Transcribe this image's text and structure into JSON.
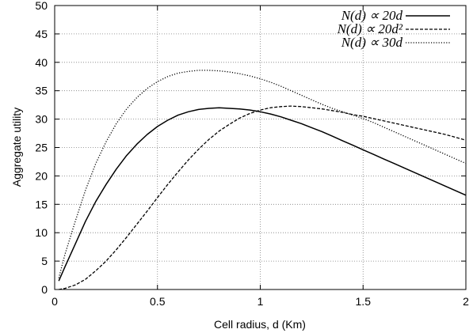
{
  "chart_data": {
    "type": "line",
    "xlabel": "Cell radius, d (Km)",
    "ylabel": "Aggregate utility",
    "xlim": [
      0,
      2
    ],
    "ylim": [
      0,
      50
    ],
    "xticks": [
      0,
      0.5,
      1,
      1.5,
      2
    ],
    "yticks": [
      0,
      5,
      10,
      15,
      20,
      25,
      30,
      35,
      40,
      45,
      50
    ],
    "grid": true,
    "legend_position": "top-right",
    "x": [
      0.02,
      0.05,
      0.1,
      0.15,
      0.2,
      0.25,
      0.3,
      0.35,
      0.4,
      0.45,
      0.5,
      0.55,
      0.6,
      0.65,
      0.7,
      0.75,
      0.8,
      0.85,
      0.9,
      0.95,
      1.0,
      1.05,
      1.1,
      1.15,
      1.2,
      1.25,
      1.3,
      1.35,
      1.4,
      1.45,
      1.5,
      1.55,
      1.6,
      1.65,
      1.7,
      1.75,
      1.8,
      1.85,
      1.9,
      1.95,
      2.0
    ],
    "series": [
      {
        "name": "N(d) ∝ 20d",
        "style": "solid",
        "values": [
          1.5,
          4.0,
          8.0,
          12.0,
          15.5,
          18.5,
          21.2,
          23.6,
          25.6,
          27.3,
          28.7,
          29.8,
          30.7,
          31.3,
          31.7,
          31.9,
          32.0,
          31.9,
          31.8,
          31.6,
          31.3,
          30.9,
          30.4,
          29.8,
          29.2,
          28.5,
          27.8,
          27.0,
          26.2,
          25.4,
          24.6,
          23.8,
          23.0,
          22.2,
          21.4,
          20.6,
          19.8,
          19.0,
          18.2,
          17.4,
          16.6
        ]
      },
      {
        "name": "N(d) ∝ 20d²",
        "style": "dashed",
        "values": [
          0.0,
          0.2,
          0.8,
          1.8,
          3.3,
          5.0,
          7.0,
          9.2,
          11.5,
          13.8,
          16.2,
          18.5,
          20.7,
          22.8,
          24.7,
          26.4,
          27.9,
          29.1,
          30.2,
          31.0,
          31.6,
          32.0,
          32.2,
          32.3,
          32.2,
          32.0,
          31.8,
          31.5,
          31.2,
          30.8,
          30.5,
          30.1,
          29.7,
          29.3,
          28.9,
          28.5,
          28.1,
          27.7,
          27.3,
          26.8,
          26.3
        ]
      },
      {
        "name": "N(d) ∝ 30d",
        "style": "dotted",
        "values": [
          2.0,
          6.2,
          12.0,
          17.5,
          22.2,
          26.0,
          29.2,
          31.8,
          33.8,
          35.4,
          36.6,
          37.5,
          38.1,
          38.4,
          38.6,
          38.6,
          38.5,
          38.3,
          38.0,
          37.6,
          37.1,
          36.5,
          35.8,
          35.0,
          34.2,
          33.4,
          32.6,
          31.9,
          31.3,
          30.7,
          30.1,
          29.4,
          28.6,
          27.8,
          27.0,
          26.2,
          25.4,
          24.6,
          23.8,
          23.0,
          22.2
        ]
      }
    ]
  }
}
